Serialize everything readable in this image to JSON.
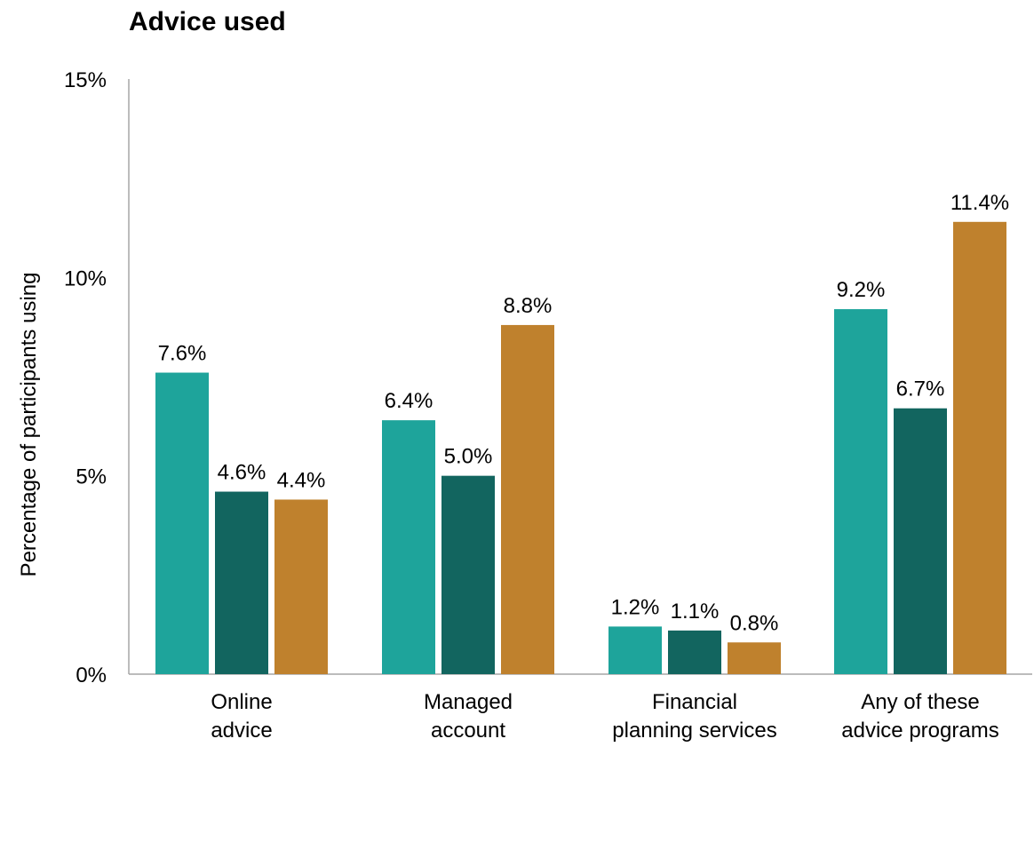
{
  "chart_data": {
    "type": "bar",
    "title": "Advice used",
    "ylabel": "Percentage of participants using",
    "xlabel": "",
    "ylim": [
      0,
      15
    ],
    "yticks": [
      "0%",
      "5%",
      "10%",
      "15%"
    ],
    "categories": [
      [
        "Online",
        "advice"
      ],
      [
        "Managed",
        "account"
      ],
      [
        "Financial",
        "planning services"
      ],
      [
        "Any of these",
        "advice programs"
      ]
    ],
    "series": [
      {
        "color": "#1ea49b",
        "values": [
          7.6,
          6.4,
          1.2,
          9.2
        ],
        "labels": [
          "7.6%",
          "6.4%",
          "1.2%",
          "9.2%"
        ]
      },
      {
        "color": "#12655f",
        "values": [
          4.6,
          5.0,
          1.1,
          6.7
        ],
        "labels": [
          "4.6%",
          "5.0%",
          "1.1%",
          "6.7%"
        ]
      },
      {
        "color": "#bf812d",
        "values": [
          4.4,
          8.8,
          0.8,
          11.4
        ],
        "labels": [
          "4.4%",
          "8.8%",
          "0.8%",
          "11.4%"
        ]
      }
    ],
    "grid": false,
    "legend": "none"
  }
}
